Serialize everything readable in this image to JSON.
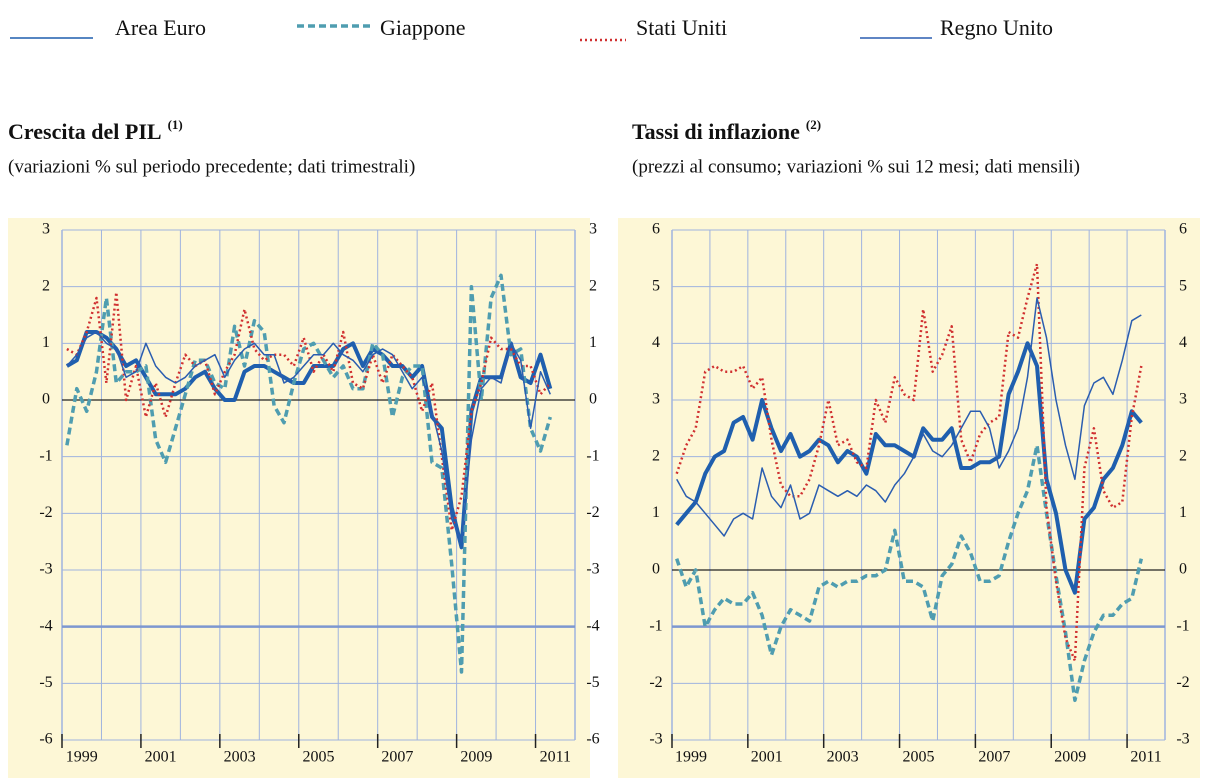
{
  "chart_data": [
    {
      "type": "line",
      "title": "Crescita del PIL",
      "title_note": "(1)",
      "subtitle": "(variazioni % sul periodo precedente; dati trimestrali)",
      "categories": [
        "1999",
        null,
        null,
        null,
        null,
        null,
        null,
        null,
        "2001",
        null,
        null,
        null,
        null,
        null,
        null,
        null,
        "2003",
        null,
        null,
        null,
        null,
        null,
        null,
        null,
        "2005",
        null,
        null,
        null,
        null,
        null,
        null,
        null,
        "2007",
        null,
        null,
        null,
        null,
        null,
        null,
        null,
        "2009",
        null,
        null,
        null,
        null,
        null,
        null,
        null,
        "2011",
        null
      ],
      "ylim": [
        -6,
        3
      ],
      "yticks": [
        -6,
        -5,
        -4,
        -3,
        -2,
        -1,
        0,
        1,
        2,
        3
      ],
      "reference_lines": [
        0,
        -4
      ],
      "grid": true,
      "series": [
        {
          "name": "Area Euro",
          "color": "#1f5fae",
          "style": "thick",
          "values": [
            0.6,
            0.7,
            1.2,
            1.2,
            1.1,
            0.9,
            0.6,
            0.7,
            0.4,
            0.1,
            0.1,
            0.1,
            0.2,
            0.4,
            0.5,
            0.2,
            0.0,
            0.0,
            0.5,
            0.6,
            0.6,
            0.5,
            0.4,
            0.3,
            0.3,
            0.6,
            0.6,
            0.6,
            0.9,
            1.0,
            0.6,
            0.9,
            0.8,
            0.6,
            0.6,
            0.4,
            0.6,
            -0.3,
            -0.5,
            -1.9,
            -2.6,
            -0.2,
            0.4,
            0.4,
            0.4,
            1.0,
            0.4,
            0.3,
            0.8,
            0.2
          ]
        },
        {
          "name": "Giappone",
          "color": "#4f9db0",
          "style": "dashed",
          "values": [
            -0.8,
            0.2,
            -0.2,
            0.5,
            1.8,
            0.3,
            0.5,
            0.5,
            0.6,
            -0.7,
            -1.1,
            -0.5,
            0.1,
            0.7,
            0.7,
            0.3,
            0.2,
            1.3,
            0.6,
            1.4,
            1.2,
            -0.1,
            -0.4,
            0.3,
            0.9,
            1.0,
            0.7,
            0.4,
            0.6,
            0.2,
            0.2,
            1.0,
            0.8,
            -0.3,
            0.4,
            0.6,
            0.6,
            -1.1,
            -1.2,
            -2.9,
            -4.8,
            2.0,
            0.0,
            1.8,
            2.2,
            0.8,
            0.9,
            -0.5,
            -0.9,
            -0.3
          ]
        },
        {
          "name": "Stati Uniti",
          "color": "#d03030",
          "style": "dotted",
          "values": [
            0.9,
            0.8,
            1.2,
            1.8,
            0.3,
            1.9,
            0.0,
            0.6,
            -0.3,
            0.3,
            -0.3,
            0.3,
            0.8,
            0.6,
            0.7,
            0.1,
            0.5,
            0.8,
            1.6,
            0.9,
            0.7,
            0.8,
            0.8,
            0.6,
            1.1,
            0.5,
            0.8,
            0.5,
            1.2,
            0.3,
            0.2,
            0.8,
            0.3,
            0.8,
            0.6,
            0.4,
            -0.2,
            0.3,
            -1.0,
            -2.3,
            -1.7,
            -0.2,
            0.3,
            1.1,
            0.9,
            0.9,
            0.6,
            0.6,
            0.1,
            0.3
          ]
        },
        {
          "name": "Regno Unito",
          "color": "#2a5db0",
          "style": "thin",
          "values": [
            0.6,
            0.8,
            1.1,
            1.2,
            1.0,
            0.9,
            0.4,
            0.5,
            1.0,
            0.6,
            0.4,
            0.3,
            0.4,
            0.6,
            0.7,
            0.8,
            0.4,
            0.7,
            0.9,
            1.0,
            0.8,
            0.8,
            0.3,
            0.4,
            0.6,
            0.8,
            0.8,
            1.0,
            0.8,
            0.7,
            0.5,
            0.8,
            0.9,
            0.8,
            0.5,
            0.2,
            0.4,
            -0.2,
            -0.9,
            -2.1,
            -2.5,
            -0.7,
            0.2,
            0.4,
            0.3,
            1.0,
            0.7,
            -0.5,
            0.5,
            0.1
          ]
        }
      ]
    },
    {
      "type": "line",
      "title": "Tassi di inflazione",
      "title_note": "(2)",
      "subtitle": "(prezzi al consumo; variazioni % sui 12 mesi; dati mensili)",
      "categories": [
        "1999",
        null,
        null,
        null,
        null,
        null,
        null,
        null,
        "2001",
        null,
        null,
        null,
        null,
        null,
        null,
        null,
        "2003",
        null,
        null,
        null,
        null,
        null,
        null,
        null,
        "2005",
        null,
        null,
        null,
        null,
        null,
        null,
        null,
        "2007",
        null,
        null,
        null,
        null,
        null,
        null,
        null,
        "2009",
        null,
        null,
        null,
        null,
        null,
        null,
        null,
        "2011",
        null
      ],
      "ylim": [
        -3,
        6
      ],
      "yticks": [
        -3,
        -2,
        -1,
        0,
        1,
        2,
        3,
        4,
        5,
        6
      ],
      "reference_lines": [
        0,
        -1
      ],
      "grid": true,
      "series": [
        {
          "name": "Area Euro",
          "color": "#1f5fae",
          "style": "thick",
          "values": [
            0.8,
            1.0,
            1.2,
            1.7,
            2.0,
            2.1,
            2.6,
            2.7,
            2.3,
            3.0,
            2.5,
            2.1,
            2.4,
            2.0,
            2.1,
            2.3,
            2.2,
            1.9,
            2.1,
            2.0,
            1.7,
            2.4,
            2.2,
            2.2,
            2.1,
            2.0,
            2.5,
            2.3,
            2.3,
            2.5,
            1.8,
            1.8,
            1.9,
            1.9,
            2.0,
            3.1,
            3.5,
            4.0,
            3.6,
            1.6,
            1.0,
            0.0,
            -0.4,
            0.9,
            1.1,
            1.6,
            1.8,
            2.2,
            2.8,
            2.6
          ]
        },
        {
          "name": "Giappone",
          "color": "#4f9db0",
          "style": "dashed",
          "values": [
            0.2,
            -0.3,
            0.0,
            -1.0,
            -0.7,
            -0.5,
            -0.6,
            -0.6,
            -0.4,
            -0.8,
            -1.5,
            -1.0,
            -0.7,
            -0.8,
            -0.9,
            -0.3,
            -0.2,
            -0.3,
            -0.2,
            -0.2,
            -0.1,
            -0.1,
            0.0,
            0.7,
            -0.2,
            -0.2,
            -0.3,
            -0.9,
            -0.1,
            0.1,
            0.6,
            0.3,
            -0.2,
            -0.2,
            -0.1,
            0.5,
            1.0,
            1.4,
            2.2,
            1.0,
            -0.1,
            -1.1,
            -2.3,
            -1.6,
            -1.1,
            -0.8,
            -0.8,
            -0.6,
            -0.5,
            0.2
          ]
        },
        {
          "name": "Stati Uniti",
          "color": "#d03030",
          "style": "dotted",
          "values": [
            1.7,
            2.2,
            2.5,
            3.5,
            3.6,
            3.5,
            3.5,
            3.6,
            3.2,
            3.4,
            2.3,
            1.5,
            1.3,
            1.3,
            1.6,
            2.2,
            3.0,
            2.2,
            2.3,
            1.9,
            1.8,
            3.0,
            2.6,
            3.4,
            3.1,
            3.0,
            4.6,
            3.5,
            3.8,
            4.3,
            2.3,
            1.9,
            2.4,
            2.6,
            2.7,
            4.2,
            4.1,
            4.8,
            5.4,
            1.1,
            -0.2,
            -1.2,
            -1.6,
            1.8,
            2.5,
            1.4,
            1.1,
            1.2,
            2.7,
            3.6
          ]
        },
        {
          "name": "Regno Unito",
          "color": "#2a5db0",
          "style": "thin",
          "values": [
            1.6,
            1.3,
            1.2,
            1.0,
            0.8,
            0.6,
            0.9,
            1.0,
            0.9,
            1.8,
            1.3,
            1.1,
            1.5,
            0.9,
            1.0,
            1.5,
            1.4,
            1.3,
            1.4,
            1.3,
            1.5,
            1.4,
            1.2,
            1.5,
            1.7,
            2.0,
            2.4,
            2.1,
            2.0,
            2.2,
            2.5,
            2.8,
            2.8,
            2.5,
            1.8,
            2.1,
            2.5,
            3.4,
            4.8,
            4.1,
            3.0,
            2.2,
            1.6,
            2.9,
            3.3,
            3.4,
            3.1,
            3.7,
            4.4,
            4.5
          ]
        }
      ]
    }
  ]
}
